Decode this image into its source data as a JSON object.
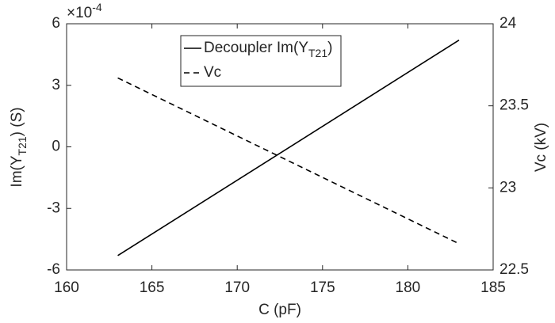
{
  "chart_data": {
    "type": "line",
    "xlabel": "C (pF)",
    "ylabel": [
      "Im(Y",
      "T21",
      ") (S)"
    ],
    "y2label": "Vc (kV)",
    "y_multiplier": [
      "×10",
      "-4"
    ],
    "x": [
      163,
      183
    ],
    "series": [
      {
        "name": [
          "Decoupler Im(Y",
          "T21",
          ")"
        ],
        "color": "#000000",
        "dash": "solid",
        "values": [
          -5.3,
          5.2
        ]
      },
      {
        "name": [
          "Vc"
        ],
        "color": "#000000",
        "dash": "dashed",
        "axis": "y2",
        "values": [
          23.67,
          22.66
        ]
      }
    ],
    "xlim": [
      160,
      185
    ],
    "xticks": [
      160,
      165,
      170,
      175,
      180,
      185
    ],
    "ylim": [
      -6,
      6
    ],
    "yticks": [
      -6,
      -3,
      0,
      3,
      6
    ],
    "y2lim": [
      22.5,
      24
    ],
    "y2ticks": [
      22.5,
      23,
      23.5,
      24
    ],
    "legend": "upper center",
    "grid": false
  }
}
